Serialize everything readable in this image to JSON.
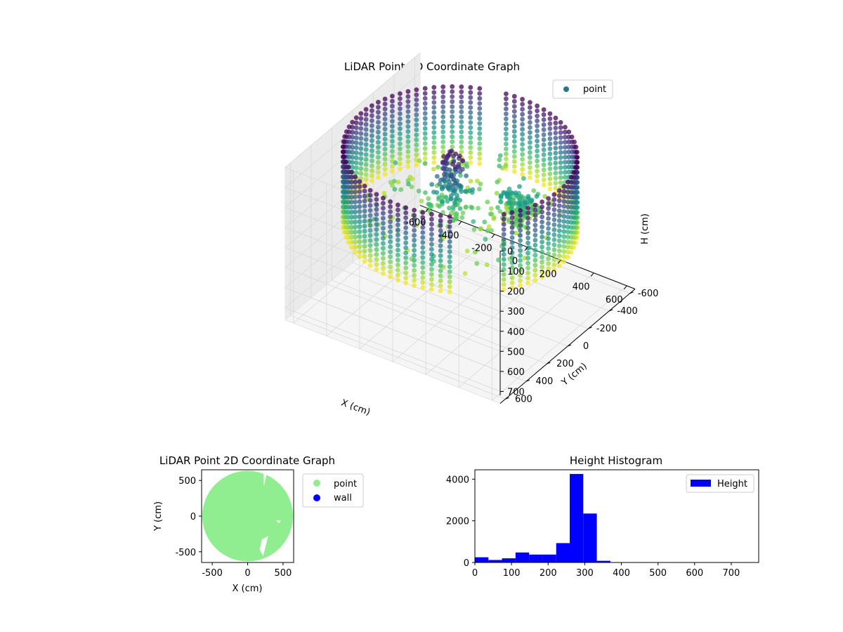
{
  "colors": {
    "background": "#ffffff",
    "pane": "#f2f2f2",
    "pane_grid": "#d9d9d9",
    "legend_point_3d": "#2a788e",
    "point_2d": "#90ee90",
    "wall_2d": "#0000ff",
    "histogram": "#0000ff",
    "colormap": "viridis"
  },
  "chart_data": [
    {
      "type": "scatter3d",
      "title": "LiDAR Point 3D Coordinate Graph",
      "xlabel": "X (cm)",
      "ylabel": "Y (cm)",
      "zlabel": "H (cm)",
      "xticks": [
        -600,
        -400,
        -200,
        0,
        200,
        400,
        600
      ],
      "yticks": [
        -600,
        -400,
        -200,
        0,
        200,
        400,
        600
      ],
      "zticks": [
        0,
        100,
        200,
        300,
        400,
        500,
        600,
        700
      ],
      "xlim": [
        -650,
        650
      ],
      "ylim": [
        -650,
        650
      ],
      "zlim": [
        760,
        0
      ],
      "zinverted": true,
      "grid": true,
      "legend": {
        "position": "top-right",
        "entries": [
          "point"
        ]
      },
      "point_cloud": {
        "shape": "cylindrical wall",
        "radius_cm": 600,
        "height_range_cm": [
          0,
          380
        ],
        "wall_gaps_deg": [
          [
            40,
            60
          ],
          [
            250,
            260
          ]
        ],
        "interior_clusters": [
          {
            "x": -40,
            "y": 20,
            "h_range": [
              20,
              310
            ]
          },
          {
            "x": 250,
            "y": -150,
            "h_range": [
              200,
              330
            ]
          }
        ],
        "color_by": "height"
      }
    },
    {
      "type": "scatter",
      "title": "LiDAR Point 2D Coordinate Graph",
      "xlabel": "X (cm)",
      "ylabel": "Y (cm)",
      "xticks": [
        -500,
        0,
        500
      ],
      "yticks": [
        -500,
        0,
        500
      ],
      "xlim": [
        -650,
        650
      ],
      "ylim": [
        -650,
        650
      ],
      "legend": {
        "position": "outside-right",
        "entries": [
          "point",
          "wall"
        ]
      },
      "point_region": {
        "shape": "disk",
        "radius_cm": 640
      }
    },
    {
      "type": "bar",
      "title": "Height Histogram",
      "xticks": [
        0,
        100,
        200,
        300,
        400,
        500,
        600,
        700
      ],
      "yticks": [
        0,
        2000,
        4000
      ],
      "xlim": [
        0,
        775
      ],
      "ylim": [
        0,
        4450
      ],
      "legend": {
        "position": "top-right",
        "entries": [
          "Height"
        ]
      },
      "bins": [
        {
          "start": 0,
          "end": 37,
          "count": 250
        },
        {
          "start": 37,
          "end": 74,
          "count": 120
        },
        {
          "start": 74,
          "end": 111,
          "count": 200
        },
        {
          "start": 111,
          "end": 148,
          "count": 480
        },
        {
          "start": 148,
          "end": 185,
          "count": 380
        },
        {
          "start": 185,
          "end": 222,
          "count": 380
        },
        {
          "start": 222,
          "end": 259,
          "count": 930
        },
        {
          "start": 259,
          "end": 296,
          "count": 4250
        },
        {
          "start": 296,
          "end": 333,
          "count": 2350
        },
        {
          "start": 333,
          "end": 370,
          "count": 80
        }
      ]
    }
  ]
}
